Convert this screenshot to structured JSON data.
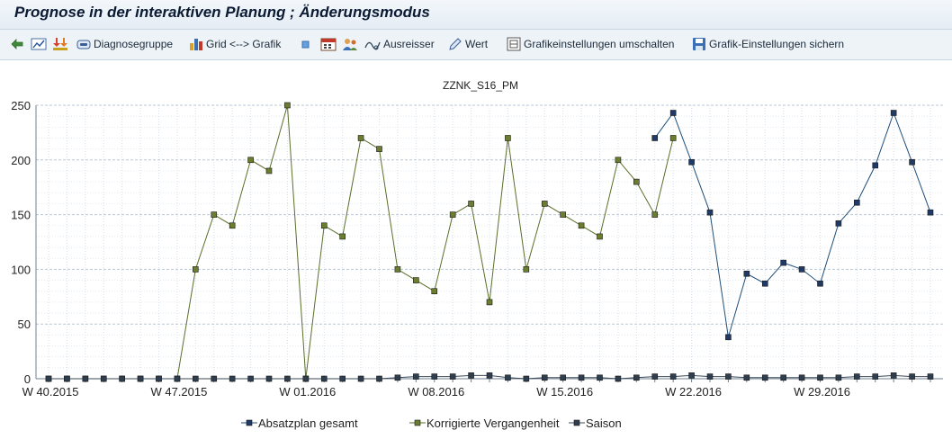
{
  "window": {
    "title": "Prognose in der interaktiven Planung  ; Änderungsmodus"
  },
  "toolbar": {
    "buttons": [
      {
        "id": "back",
        "label": "",
        "icon": "back-arrow-icon"
      },
      {
        "id": "chart",
        "label": "",
        "icon": "line-chart-icon"
      },
      {
        "id": "merge",
        "label": "",
        "icon": "arrows-merge-icon"
      },
      {
        "id": "diagnose",
        "label": "Diagnosegruppe",
        "icon": "diagnosis-group-icon"
      },
      {
        "id": "grid",
        "label": "Grid <--> Grafik",
        "icon": "bar-chart-icon"
      },
      {
        "id": "square",
        "label": "",
        "icon": "small-square-icon"
      },
      {
        "id": "calendar",
        "label": "",
        "icon": "calendar-icon"
      },
      {
        "id": "people",
        "label": "",
        "icon": "people-icon"
      },
      {
        "id": "outlier",
        "label": "Ausreisser",
        "icon": "outlier-icon"
      },
      {
        "id": "value",
        "label": "Wert",
        "icon": "pencil-icon"
      },
      {
        "id": "toggle",
        "label": "Grafikeinstellungen umschalten",
        "icon": "settings-toggle-icon"
      },
      {
        "id": "save",
        "label": "Grafik-Einstellungen sichern",
        "icon": "save-icon"
      }
    ]
  },
  "chart_data": {
    "type": "line",
    "title": "ZZNK_S16_PM",
    "ylim": [
      0,
      250
    ],
    "yticks": [
      0,
      50,
      100,
      150,
      200,
      250
    ],
    "num_periods": 49,
    "x_tick_labels": [
      {
        "index": 0,
        "label": "W 40.2015"
      },
      {
        "index": 7,
        "label": "W 47.2015"
      },
      {
        "index": 14,
        "label": "W 01.2016"
      },
      {
        "index": 21,
        "label": "W 08.2016"
      },
      {
        "index": 28,
        "label": "W 15.2016"
      },
      {
        "index": 35,
        "label": "W 22.2016"
      },
      {
        "index": 42,
        "label": "W 29.2016"
      }
    ],
    "grid": true,
    "legend_position": "bottom",
    "series": [
      {
        "name": "Absatzplan gesamt",
        "color": "#1f4e79",
        "marker": "#1f3a66",
        "start_index": 33,
        "values": [
          220,
          243,
          198,
          152,
          38,
          96,
          87,
          106,
          100,
          87,
          142,
          161,
          195,
          243,
          198,
          152
        ]
      },
      {
        "name": "Korrigierte Vergangenheit",
        "color": "#5a6e2a",
        "marker": "#6b7d2e",
        "start_index": 0,
        "values": [
          0,
          0,
          0,
          0,
          0,
          0,
          0,
          0,
          100,
          150,
          140,
          200,
          190,
          250,
          0,
          140,
          130,
          220,
          210,
          100,
          90,
          80,
          150,
          160,
          70,
          220,
          100,
          160,
          150,
          140,
          130,
          200,
          180,
          150,
          220
        ]
      },
      {
        "name": "Saison",
        "color": "#3a4a5a",
        "marker": "#2f3e4e",
        "start_index": 0,
        "values": [
          0,
          0,
          0,
          0,
          0,
          0,
          0,
          0,
          0,
          0,
          0,
          0,
          0,
          0,
          0,
          0,
          0,
          0,
          0,
          1,
          2,
          2,
          2,
          3,
          3,
          1,
          0,
          1,
          1,
          1,
          1,
          0,
          1,
          2,
          2,
          3,
          2,
          2,
          1,
          1,
          1,
          1,
          1,
          1,
          2,
          2,
          3,
          2,
          2
        ]
      }
    ]
  }
}
